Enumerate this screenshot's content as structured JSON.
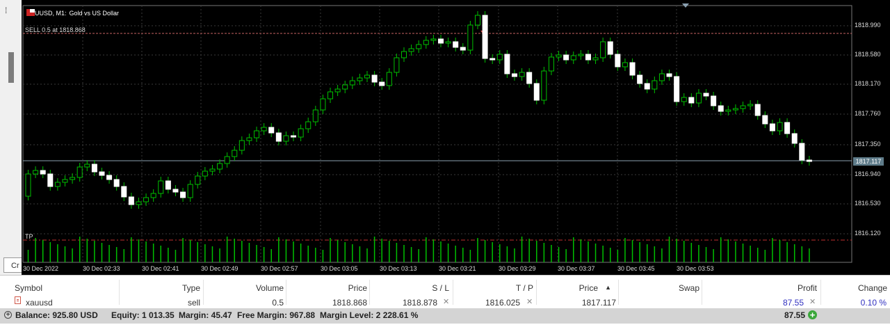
{
  "chart": {
    "legend_symbol": "XAUUSD, M1:",
    "legend_name": "Gold vs US Dollar",
    "sell_line_label": "SELL 0.5 at 1818.868",
    "tp_label": "TP",
    "current_price": "1817.117",
    "y_axis_labels": [
      "1818.990",
      "1818.580",
      "1818.170",
      "1817.760",
      "1817.350",
      "1816.940",
      "1816.530",
      "1816.120"
    ],
    "x_axis_labels": [
      "30 Dec 2022",
      "30 Dec 02:33",
      "30 Dec 02:41",
      "30 Dec 02:49",
      "30 Dec 02:57",
      "30 Dec 03:05",
      "30 Dec 03:13",
      "30 Dec 03:21",
      "30 Dec 03:29",
      "30 Dec 03:37",
      "30 Dec 03:45",
      "30 Dec 03:53"
    ],
    "colors": {
      "background": "#000000",
      "bull": "#000000",
      "bear": "#ffffff",
      "wick": "#00c000",
      "grid": "#3a3a3a",
      "sell_line": "#c86464",
      "tp_line": "#c03030",
      "volume": "#00c000"
    }
  },
  "left_panel": {
    "tab_label": "Cr",
    "top_marker": "⁞"
  },
  "table": {
    "headers": {
      "symbol": "Symbol",
      "type": "Type",
      "volume": "Volume",
      "price": "Price",
      "sl": "S / L",
      "tp": "T / P",
      "current_price": "Price",
      "swap": "Swap",
      "profit": "Profit",
      "change": "Change"
    },
    "sort_indicator": "▲",
    "row": {
      "symbol": "xauusd",
      "type": "sell",
      "volume": "0.5",
      "price": "1818.868",
      "sl": "1818.878",
      "tp": "1816.025",
      "current_price": "1817.117",
      "swap": "",
      "profit": "87.55",
      "change": "0.10 %"
    },
    "summary": {
      "balance": "Balance: 925.80 USD",
      "equity": "Equity: 1 013.35",
      "margin": "Margin: 45.47",
      "free_margin": "Free Margin: 967.88",
      "margin_level": "Margin Level: 2 228.61 %",
      "profit": "87.55"
    },
    "colors": {
      "profit": "#3030c0",
      "change": "#3030c0"
    }
  }
}
